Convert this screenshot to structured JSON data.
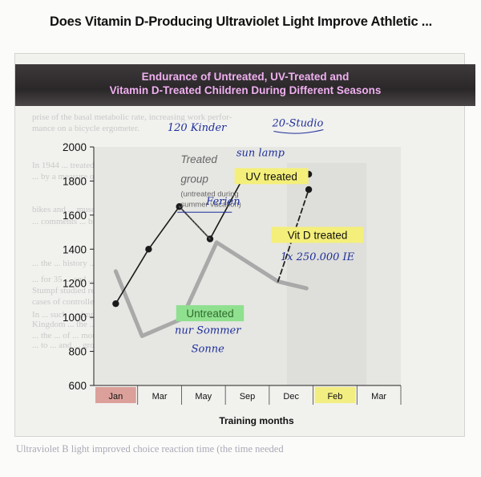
{
  "page": {
    "heading": "Does Vitamin D-Producing Ultraviolet Light Improve Athletic ...",
    "background_text": [
      "prise of the basal metabolic rate, increasing work perfor-",
      "mance on a bicycle ergometer.",
      "In 1944 ... treated ... groups ... eleven adults ... measured by",
      "... by a measure of ... muscle ... the UV",
      "bikes and ... muscle strength ... found that UV",
      "... comments ... bicycle",
      "... the ... history ... of this series the finish-",
      "... for 35 ... and ... of ... the ... Court",
      "Stumpf studied reaction time in 1 ... children ... 1 ... in",
      "cases of controlled exposure to UV light ... for personal effect",
      "In ... such ... simply ... to ... summer ...",
      "Kingdom ... the ... measure ... in ... UV ... rade ... week",
      "... the ... of ... months ... beginning ...",
      "... to ... and ... group"
    ],
    "bottom_text": "Ultraviolet B light improved choice reaction time (the time needed"
  },
  "chart_data": {
    "type": "line",
    "title": [
      "Endurance of Untreated, UV-Treated and",
      "Vitamin D-Treated Children During Different Seasons"
    ],
    "xlabel": "Training months",
    "ylabel": "",
    "categories": [
      "Jan",
      "Mar",
      "May",
      "Sep",
      "Dec",
      "Feb",
      "Mar"
    ],
    "ylim": [
      600,
      2000
    ],
    "yticks": [
      600,
      800,
      1000,
      1200,
      1400,
      1600,
      1800,
      2000
    ],
    "grid": false,
    "highlighted_categories": [
      {
        "index": 0,
        "color": "#dba09a"
      },
      {
        "index": 5,
        "color": "#f2ee82"
      }
    ],
    "series": [
      {
        "name": "Untreated",
        "color": "#a9a9a9",
        "style": "thick",
        "points": [
          [
            0,
            1270
          ],
          [
            0.6,
            890
          ],
          [
            1.5,
            990
          ],
          [
            2.3,
            1440
          ],
          [
            3.7,
            1210
          ],
          [
            4.35,
            1170
          ]
        ]
      },
      {
        "name": "UV treated",
        "color": "#1a1a1a",
        "style": "solid",
        "points": [
          [
            0,
            1080
          ],
          [
            0.75,
            1400
          ],
          [
            1.45,
            1650
          ],
          [
            2.15,
            1460
          ],
          [
            2.95,
            1840
          ],
          [
            4.4,
            1840
          ]
        ]
      },
      {
        "name": "Treated group",
        "color": "#444444",
        "style": "dotted",
        "points": [
          [
            1.45,
            1650
          ],
          [
            2.15,
            1460
          ]
        ]
      },
      {
        "name": "Vit D treated",
        "color": "#222222",
        "style": "dashed",
        "points": [
          [
            3.7,
            1210
          ],
          [
            4.4,
            1750
          ]
        ]
      }
    ],
    "annotations": [
      {
        "text": "Treated",
        "kind": "gray",
        "x": 1.48,
        "y": 1905
      },
      {
        "text": "group",
        "kind": "gray",
        "x": 1.48,
        "y": 1790
      },
      {
        "text": "(untreated during",
        "kind": "gray-small",
        "x": 1.48,
        "y": 1710
      },
      {
        "text": "summer vacation)",
        "kind": "gray-small",
        "x": 1.48,
        "y": 1650
      },
      {
        "text": "UV treated",
        "kind": "badge",
        "x": 3.55,
        "y": 1810
      },
      {
        "text": "Vit D treated",
        "kind": "badge",
        "x": 4.6,
        "y": 1465
      },
      {
        "text": "Untreated",
        "kind": "badge-green",
        "x": 2.15,
        "y": 1005
      }
    ],
    "handwritten": [
      {
        "text": "120 Kinder",
        "x": 1.85,
        "y": 2095
      },
      {
        "text": "Ferien",
        "x": 2.45,
        "y": 1660
      },
      {
        "text": "20-Studio",
        "x": 4.15,
        "y": 2120
      },
      {
        "text": "sun lamp",
        "x": 3.3,
        "y": 1945
      },
      {
        "text": "1x 250.000 IE",
        "x": 4.6,
        "y": 1335
      },
      {
        "text": "nur Sommer",
        "x": 2.1,
        "y": 905
      },
      {
        "text": "Sonne",
        "x": 2.1,
        "y": 795
      }
    ]
  }
}
